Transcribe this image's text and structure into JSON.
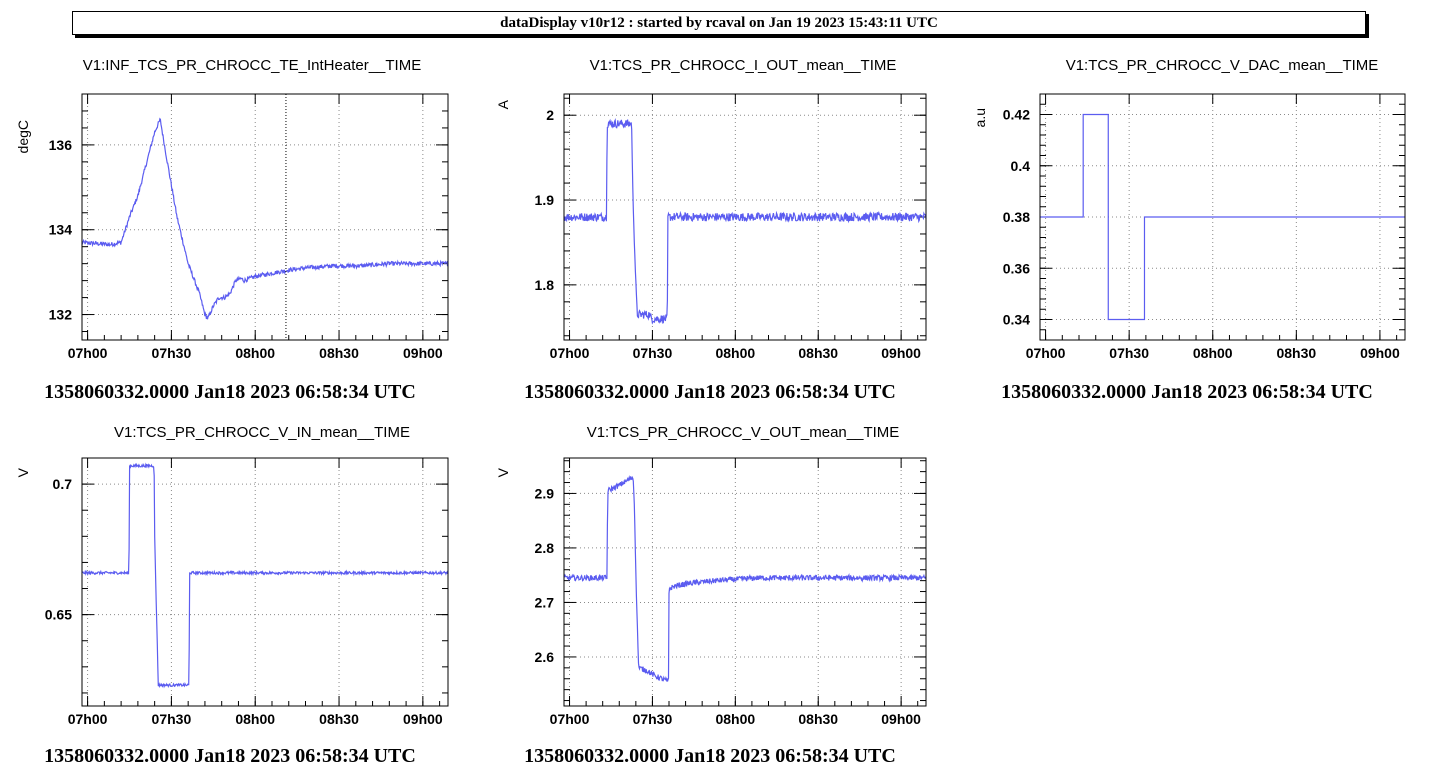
{
  "window": {
    "title": "dataDisplay v10r12 : started by rcaval on Jan 19 2023 15:43:11 UTC"
  },
  "colors": {
    "series": "#5b5cf0",
    "grid": "#8a8a8a"
  },
  "chart_data": [
    {
      "type": "line",
      "title": "V1:INF_TCS_PR_CHROCC_TE_IntHeater__TIME",
      "ylabel": "degC",
      "xlabel": "",
      "footer": "1358060332.0000 Jan18 2023 06:58:34 UTC",
      "x_tick_labels": [
        "07h00",
        "07h30",
        "08h00",
        "08h30",
        "09h00"
      ],
      "x_tick_minutes": [
        2,
        32,
        62,
        92,
        122
      ],
      "xlim_minutes": [
        0,
        131
      ],
      "ylim": [
        131.4,
        137.2
      ],
      "y_ticks": [
        132,
        134,
        136
      ],
      "y_tick_labels": [
        "132",
        "134",
        "136"
      ],
      "grid": true,
      "cursor_minute": 73,
      "x": [
        0,
        10,
        14,
        17,
        20,
        24,
        26,
        28,
        30,
        34,
        38,
        42,
        44,
        45,
        47,
        49,
        51,
        53,
        55,
        57,
        58,
        60,
        62,
        66,
        70,
        74,
        80,
        90,
        100,
        110,
        120,
        131
      ],
      "y": [
        133.7,
        133.65,
        133.7,
        134.3,
        134.8,
        135.8,
        136.3,
        136.6,
        135.8,
        134.3,
        133.2,
        132.5,
        132.0,
        131.9,
        132.2,
        132.4,
        132.4,
        132.5,
        132.8,
        132.85,
        132.8,
        132.85,
        132.9,
        132.95,
        133.0,
        133.05,
        133.1,
        133.15,
        133.15,
        133.2,
        133.2,
        133.2
      ],
      "noise": 0.1
    },
    {
      "type": "line",
      "title": "V1:TCS_PR_CHROCC_I_OUT_mean__TIME",
      "ylabel": "A",
      "xlabel": "",
      "footer": "1358060332.0000 Jan18 2023 06:58:34 UTC",
      "x_tick_labels": [
        "07h00",
        "07h30",
        "08h00",
        "08h30",
        "09h00"
      ],
      "x_tick_minutes": [
        2,
        32,
        62,
        92,
        122
      ],
      "xlim_minutes": [
        0,
        131
      ],
      "ylim": [
        1.735,
        2.025
      ],
      "y_ticks": [
        1.8,
        1.9,
        2.0
      ],
      "y_tick_labels": [
        "1.8",
        "1.9",
        "2"
      ],
      "grid": true,
      "x": [
        0,
        15.4,
        15.6,
        24.5,
        24.8,
        26,
        26.5,
        31,
        31.5,
        37.4,
        37.6,
        131
      ],
      "y": [
        1.88,
        1.88,
        1.99,
        1.99,
        1.92,
        1.8,
        1.765,
        1.765,
        1.76,
        1.76,
        1.88,
        1.88
      ],
      "noise": 0.01
    },
    {
      "type": "line",
      "title": "V1:TCS_PR_CHROCC_V_DAC_mean__TIME",
      "ylabel": "a.u",
      "xlabel": "",
      "footer": "1358060332.0000 Jan18 2023 06:58:34 UTC",
      "x_tick_labels": [
        "07h00",
        "07h30",
        "08h00",
        "08h30",
        "09h00"
      ],
      "x_tick_minutes": [
        2,
        32,
        62,
        92,
        122
      ],
      "xlim_minutes": [
        0,
        131
      ],
      "ylim": [
        0.332,
        0.428
      ],
      "y_ticks": [
        0.34,
        0.36,
        0.38,
        0.4,
        0.42
      ],
      "y_tick_labels": [
        "0.34",
        "0.36",
        "0.38",
        "0.4",
        "0.42"
      ],
      "grid": true,
      "step": true,
      "x": [
        0,
        15.5,
        24.5,
        37.5,
        131
      ],
      "y": [
        0.38,
        0.42,
        0.34,
        0.38,
        0.38
      ],
      "noise": 0
    },
    {
      "type": "line",
      "title": "V1:TCS_PR_CHROCC_V_IN_mean__TIME",
      "ylabel": "V",
      "xlabel": "",
      "footer": "1358060332.0000 Jan18 2023 06:58:34 UTC",
      "x_tick_labels": [
        "07h00",
        "07h30",
        "08h00",
        "08h30",
        "09h00"
      ],
      "x_tick_minutes": [
        2,
        32,
        62,
        92,
        122
      ],
      "xlim_minutes": [
        0,
        131
      ],
      "ylim": [
        0.615,
        0.71
      ],
      "y_ticks": [
        0.65,
        0.7
      ],
      "y_tick_labels": [
        "0.65",
        "0.7"
      ],
      "grid": true,
      "x": [
        0,
        16.8,
        17,
        25.8,
        26,
        27.3,
        27.5,
        38.3,
        38.5,
        131
      ],
      "y": [
        0.666,
        0.666,
        0.707,
        0.707,
        0.68,
        0.623,
        0.623,
        0.623,
        0.666,
        0.666
      ],
      "noise": 0.001
    },
    {
      "type": "line",
      "title": "V1:TCS_PR_CHROCC_V_OUT_mean__TIME",
      "ylabel": "V",
      "xlabel": "",
      "footer": "1358060332.0000 Jan18 2023 06:58:34 UTC",
      "x_tick_labels": [
        "07h00",
        "07h30",
        "08h00",
        "08h30",
        "09h00"
      ],
      "x_tick_minutes": [
        2,
        32,
        62,
        92,
        122
      ],
      "xlim_minutes": [
        0,
        131
      ],
      "ylim": [
        2.51,
        2.965
      ],
      "y_ticks": [
        2.6,
        2.7,
        2.8,
        2.9
      ],
      "y_tick_labels": [
        "2.6",
        "2.7",
        "2.8",
        "2.9"
      ],
      "grid": true,
      "x": [
        0,
        15.6,
        15.8,
        20,
        25,
        25.5,
        26,
        27,
        30,
        33,
        37.8,
        38,
        40,
        45,
        55,
        70,
        90,
        131
      ],
      "y": [
        2.745,
        2.745,
        2.905,
        2.915,
        2.93,
        2.88,
        2.75,
        2.58,
        2.575,
        2.565,
        2.555,
        2.725,
        2.73,
        2.735,
        2.74,
        2.745,
        2.745,
        2.745
      ],
      "noise": 0.01
    }
  ]
}
